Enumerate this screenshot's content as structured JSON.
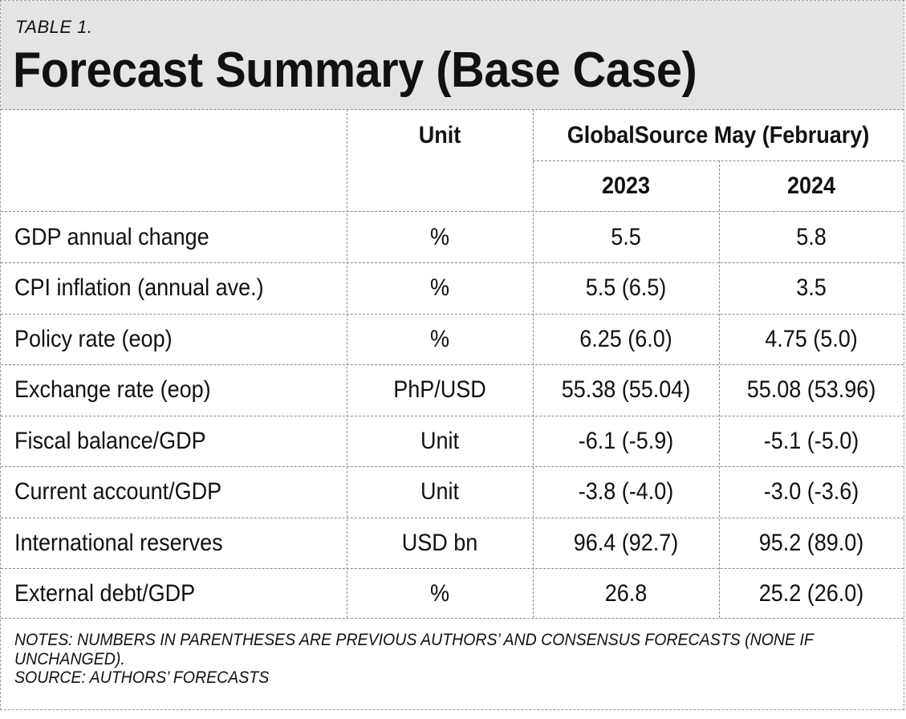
{
  "table": {
    "label": "TABLE 1.",
    "title": "Forecast Summary (Base Case)",
    "headers": {
      "unit": "Unit",
      "group": "GlobalSource May (February)",
      "year1": "2023",
      "year2": "2024"
    },
    "rows": [
      {
        "label": "GDP annual change",
        "unit": "%",
        "y2023": "5.5",
        "y2024": "5.8"
      },
      {
        "label": "CPI inflation (annual ave.)",
        "unit": "%",
        "y2023": "5.5 (6.5)",
        "y2024": "3.5"
      },
      {
        "label": "Policy rate (eop)",
        "unit": "%",
        "y2023": "6.25 (6.0)",
        "y2024": "4.75 (5.0)"
      },
      {
        "label": "Exchange rate (eop)",
        "unit": "PhP/USD",
        "y2023": "55.38 (55.04)",
        "y2024": "55.08 (53.96)"
      },
      {
        "label": "Fiscal balance/GDP",
        "unit": "Unit",
        "y2023": "-6.1 (-5.9)",
        "y2024": "-5.1 (-5.0)"
      },
      {
        "label": "Current account/GDP",
        "unit": "Unit",
        "y2023": "-3.8 (-4.0)",
        "y2024": "-3.0 (-3.6)"
      },
      {
        "label": "International reserves",
        "unit": "USD bn",
        "y2023": "96.4 (92.7)",
        "y2024": "95.2 (89.0)"
      },
      {
        "label": "External debt/GDP",
        "unit": "%",
        "y2023": "26.8",
        "y2024": "25.2 (26.0)"
      }
    ],
    "notes": "NOTES: NUMBERS IN PARENTHESES ARE PREVIOUS AUTHORS’ AND CONSENSUS FORECASTS (NONE IF UNCHANGED).",
    "source": "SOURCE: AUTHORS’ FORECASTS"
  }
}
